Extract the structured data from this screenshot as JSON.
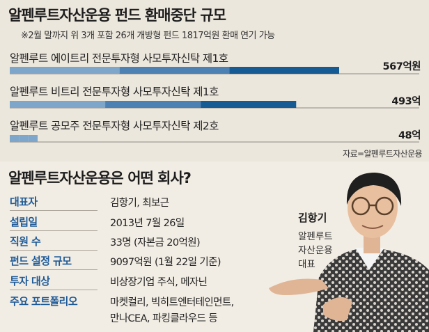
{
  "title": "알펜루트자산운용 펀드 환매중단 규모",
  "subtitle": "※2월 말까지 위 3개 포함 26개 개방형 펀드 1817억원 환매 연기 가능",
  "source": "자료=알펜루트자산운용",
  "chart_data": {
    "type": "bar",
    "orientation": "horizontal",
    "categories": [
      "알펜루트 에이트리 전문투자형 사모투자신탁 제1호",
      "알펜루트 비트리 전문투자형 사모투자신탁 제1호",
      "알펜루트 공모주 전문투자형 사모투자신탁 제2호"
    ],
    "values": [
      567,
      493,
      48
    ],
    "value_labels": [
      "567억원",
      "493억",
      "48억"
    ],
    "unit": "억원",
    "colors": [
      "#7ea6cb",
      "#4d80b3",
      "#175b94"
    ]
  },
  "profile": {
    "heading": "알펜루트자산운용은 어떤 회사?",
    "rows": [
      {
        "key": "대표자",
        "value": "김항기, 최보근"
      },
      {
        "key": "설립일",
        "value": "2013년 7월 26일"
      },
      {
        "key": "직원 수",
        "value": "33명 (자본금 20억원)"
      },
      {
        "key": "펀드 설정 규모",
        "value": "9097억원 (1월 22일 기준)"
      },
      {
        "key": "투자 대상",
        "value": "비상장기업 주식, 메자닌"
      },
      {
        "key": "주요 포트폴리오",
        "value": "마켓컬리, 빅히트엔터테인먼트,",
        "value2": "만나CEA, 파킹클라우드 등"
      }
    ]
  },
  "person": {
    "name": "김항기",
    "org_line1": "알펜루트",
    "org_line2": "자산운용",
    "org_line3": "대표"
  }
}
